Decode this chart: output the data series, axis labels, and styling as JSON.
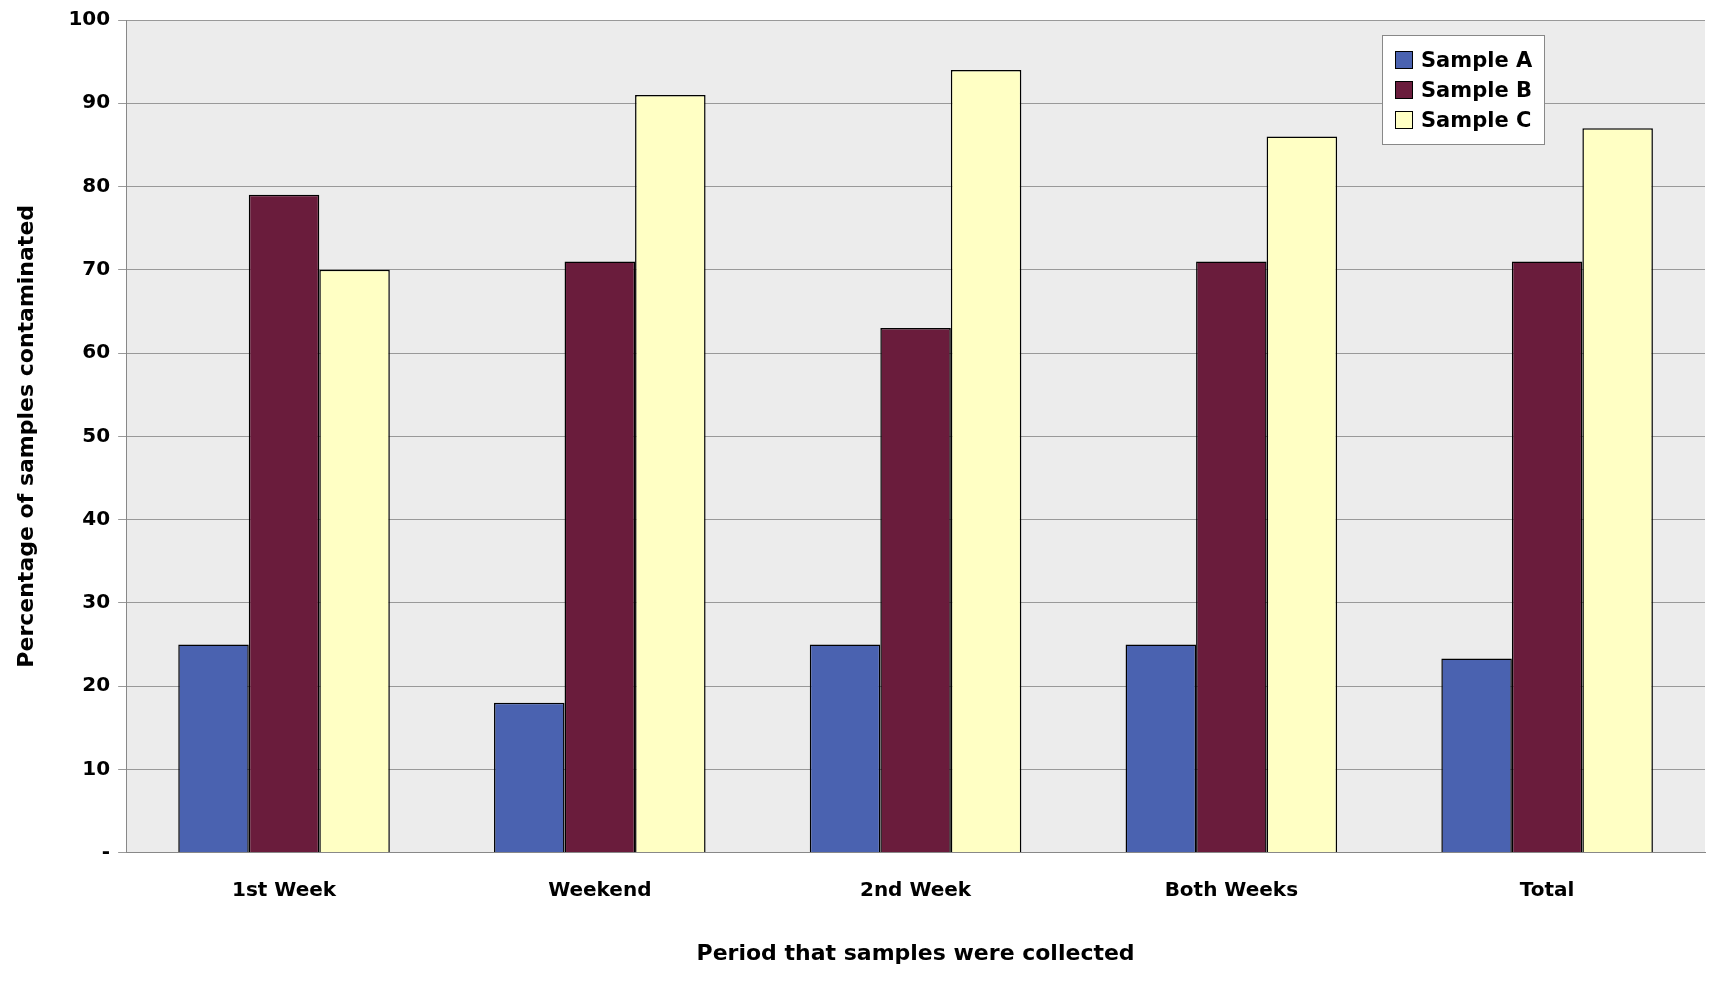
{
  "chart_data": {
    "type": "bar",
    "xlabel": "Period that samples were collected",
    "ylabel": "Percentage of samples contaminated",
    "categories": [
      "1st Week",
      "Weekend",
      "2nd Week",
      "Both Weeks",
      "Total"
    ],
    "series": [
      {
        "name": "Sample A",
        "color": "#4a62b0",
        "values": [
          25,
          18,
          25,
          25,
          23.3
        ]
      },
      {
        "name": "Sample B",
        "color": "#6a1c3c",
        "values": [
          79,
          71,
          63,
          71,
          71
        ]
      },
      {
        "name": "Sample C",
        "color": "#ffffc4",
        "values": [
          70,
          91,
          94,
          86,
          87
        ]
      }
    ],
    "ylim": [
      0,
      100
    ],
    "yticks": [
      {
        "value": 0,
        "label": "-"
      },
      10,
      20,
      30,
      40,
      50,
      60,
      70,
      80,
      90,
      100
    ],
    "grid": "y",
    "legend": "top right"
  }
}
